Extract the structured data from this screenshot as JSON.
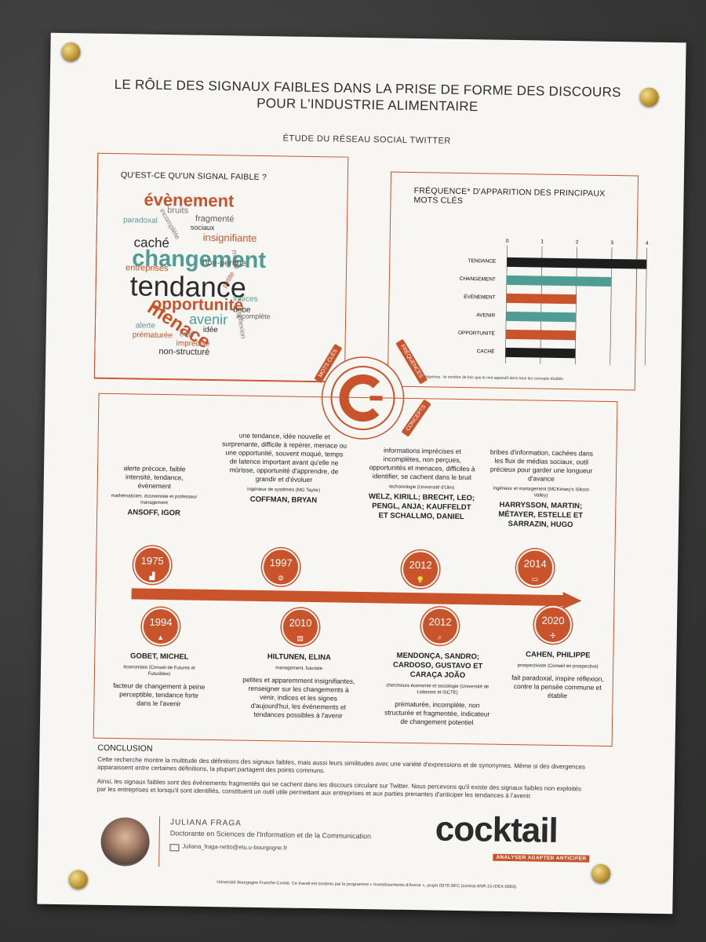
{
  "poster": {
    "title_line1": "LE RÔLE DES SIGNAUX FAIBLES DANS LA PRISE DE FORME DES DISCOURS",
    "title_line2": "POUR L'INDUSTRIE ALIMENTAIRE",
    "subtitle": "ÉTUDE DU RÉSEAU SOCIAL TWITTER"
  },
  "wordcloud": {
    "heading": "QU'EST-CE QU'UN SIGNAL FAIBLE ?",
    "words": [
      {
        "text": "évènement",
        "color": "#c9532a"
      },
      {
        "text": "bruits",
        "color": "#7a7a7a"
      },
      {
        "text": "fragmenté",
        "color": "#5a5a5a"
      },
      {
        "text": "paradoxal",
        "color": "#4e9c94"
      },
      {
        "text": "incomplète",
        "color": "#7a7a7a"
      },
      {
        "text": "sociaux",
        "color": "#2b2b2b"
      },
      {
        "text": "insignifiante",
        "color": "#c9532a"
      },
      {
        "text": "caché",
        "color": "#2b2b2b"
      },
      {
        "text": "changement",
        "color": "#4e9c94"
      },
      {
        "text": "médio",
        "color": "#7a7a7a"
      },
      {
        "text": "non-perçue",
        "color": "#5a5a5a"
      },
      {
        "text": "entreprises",
        "color": "#c9532a"
      },
      {
        "text": "tendance",
        "color": "#2b2b2b"
      },
      {
        "text": "opportunité",
        "color": "#c9532a"
      },
      {
        "text": "indices",
        "color": "#4e9c94"
      },
      {
        "text": "menace",
        "color": "#c9532a"
      },
      {
        "text": "bribe",
        "color": "#2b2b2b"
      },
      {
        "text": "avenir",
        "color": "#4e9c94"
      },
      {
        "text": "incomplète",
        "color": "#5a5a5a"
      },
      {
        "text": "alerte",
        "color": "#4e9c94"
      },
      {
        "text": "outil",
        "color": "#7a7a7a"
      },
      {
        "text": "prématurée",
        "color": "#c9532a"
      },
      {
        "text": "réflexion",
        "color": "#7a7a7a"
      },
      {
        "text": "idée",
        "color": "#2b2b2b"
      },
      {
        "text": "imprécisé",
        "color": "#c9532a"
      },
      {
        "text": "non-structuré",
        "color": "#2b2b2b"
      },
      {
        "text": "petite",
        "color": "#c9532a"
      }
    ]
  },
  "chart_data": {
    "type": "bar",
    "title": "FRÉQUENCE* D'APPARITION DES PRINCIPAUX MOTS CLÉS",
    "categories": [
      "TENDANCE",
      "CHANGEMENT",
      "ÉVÈNEMENT",
      "AVENIR",
      "OPPORTUNITÉ",
      "CACHÉ"
    ],
    "values": [
      4,
      3,
      2,
      2,
      2,
      2
    ],
    "colors": [
      "#1e1e1e",
      "#4e9c94",
      "#c9532a",
      "#4e9c94",
      "#c9532a",
      "#1e1e1e"
    ],
    "xticks": [
      "0",
      "1",
      "2",
      "3",
      "4"
    ],
    "xlim": [
      0,
      4
    ],
    "grid": true,
    "orientation": "horizontal",
    "note": "* Fréquence : le nombre de fois que le mot apparaît dans tous les concepts étudiés."
  },
  "tabs": {
    "mots_cles": "MOTS CLÉS",
    "frequences": "FRÉQUENCES",
    "concepts": "CONCEPTS"
  },
  "timeline": {
    "top": [
      {
        "year": "1975",
        "icon": "bar-chart-icon",
        "def": "alerte précoce, faible intensité, tendance, évènement",
        "aff": "mathématicien, économiste et professeur management",
        "name": "ANSOFF, IGOR"
      },
      {
        "year": "1997",
        "icon": "gears-icon",
        "def": "une tendance, idée nouvelle et surprenante, difficile à repérer, menace ou une opportunité, souvent moqué, temps de latence important avant qu'elle ne mûrisse, opportunité d'apprendre, de grandir et d'évoluer",
        "aff": "ingénieur de systèmes (MG Taylor)",
        "name": "COFFMAN, BRYAN"
      },
      {
        "year": "2012",
        "icon": "lightbulb-icon",
        "def": "informations imprécises et incomplètes, non perçues, opportunités et menaces, difficiles à identifier, se cachent dans le bruit",
        "aff": "techonologie (Université d'Ulm)",
        "name": "WELZ, KIRILL; BRECHT, LEO; PENGL, ANJA; KAUFFELDT ET SCHALLMO, DANIEL"
      },
      {
        "year": "2014",
        "icon": "briefcase-icon",
        "def": "bribes d'information, cachées dans les flux de médias sociaux, outil précieux pour garder une longueur d'avance",
        "aff": "ingénieur et management (MCKinsey's Silicon Valley)",
        "name": "HARRYSSON, MARTIN; MÉTAYER, ESTELLE ET SARRAZIN, HUGO"
      }
    ],
    "bottom": [
      {
        "year": "1994",
        "icon": "graduation-icon",
        "name": "GOBET, MICHEL",
        "aff": "économiste (Conseil de Futures et Futuribles)",
        "def": "facteur de changement à peine perceptible, tendance forte dans le l'avenir"
      },
      {
        "year": "2010",
        "icon": "book-icon",
        "name": "HILTUNEN, ELINA",
        "aff": "management, futuriste",
        "def": "petites et apparemment insignifiantes, renseigner sur les changements à venir, indices et les signes d'aujourd'hui, les évènements et tendances possibles à l'avenir"
      },
      {
        "year": "2012",
        "icon": "magnifier-icon",
        "name": "MENDONÇA, SANDRO; CARDOSO, GUSTAVO ET CARAÇA JOÃO",
        "aff": "chercheurs économie et sociologie (Université de Lisbonne et ISCTE)",
        "def": "prématurée, incomplète, non structurée et fragmentée, indicateur de changement potentiel"
      },
      {
        "year": "2020",
        "icon": "signpost-icon",
        "name": "CAHEN, PHILIPPE",
        "aff": "prospectiviste (Conseil en prospective)",
        "def": "fait paradoxal, inspire réflexion, contre la pensée commune et établie"
      }
    ]
  },
  "conclusion": {
    "heading": "CONCLUSION",
    "p1": "Cette recherche montre la multitude des définitions des signaux faibles, mais aussi leurs similitudes avec une variété d'expressions et de synonymes. Même si des divergences apparaissent entre certaines définitions, la plupart partagent des points communs.",
    "p2": "Ainsi, les signaux faibles sont des évènements fragmentés qui se cachent dans les discours circulant sur Twitter. Nous percevons qu'il existe des signaux faibles non exploités par les entreprises et lorsqu'il sont identifiés, constituent un outil utile permettant aux entreprises et aux parties prenantes d'anticiper les tendances à l'avenir."
  },
  "author": {
    "name": "JULIANA FRAGA",
    "role": "Doctorante en Sciences de l'Information et de la Communication",
    "email": "Juliana_fraga-netto@etu.u-bourgogne.fr"
  },
  "brand": {
    "logo": "cocktail",
    "tagline": "ANALYSER ADAPTER ANTICIPER"
  },
  "footer": "Université Bourgogne Franche-Comté. Ce travail est soutenu par le programme « Investissements d'Avenir », projet ISITE-BFC (contrat ANR-15-IDEX-0003).",
  "colors": {
    "accent": "#c9532a",
    "teal": "#4e9c94",
    "dark": "#1e1e1e"
  }
}
